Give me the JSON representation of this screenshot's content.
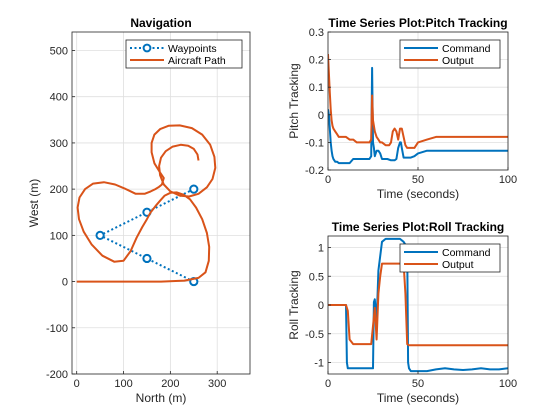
{
  "colors": {
    "series_blue": "#0072BD",
    "series_orange": "#D95319",
    "grid": "#dfdfdf",
    "axis": "#262626"
  },
  "chart_data": [
    {
      "type": "line",
      "title": "Navigation",
      "xlabel": "North (m)",
      "ylabel": "West (m)",
      "xlim": [
        -10,
        370
      ],
      "ylim": [
        -200,
        540
      ],
      "xticks": [
        0,
        100,
        200,
        300
      ],
      "yticks": [
        -200,
        -100,
        0,
        100,
        200,
        300,
        400,
        500
      ],
      "grid": true,
      "equal_aspect": true,
      "legend": "top-right",
      "series": [
        {
          "name": "Waypoints",
          "style": "dotted-with-circle-markers",
          "color": "#0072BD",
          "x": [
            250,
            150,
            50,
            150,
            250
          ],
          "y": [
            200,
            150,
            100,
            50,
            0
          ]
        },
        {
          "name": "Aircraft Path",
          "style": "solid",
          "color": "#D95319",
          "x": [
            0,
            90,
            180,
            230,
            260,
            275,
            282,
            283,
            278,
            268,
            255,
            242,
            228,
            214,
            200,
            188,
            178,
            168,
            158,
            150,
            140,
            128,
            115,
            100,
            80,
            55,
            32,
            15,
            5,
            2,
            6,
            18,
            35,
            58,
            82,
            105,
            126,
            145,
            158,
            168,
            176,
            182,
            186,
            178,
            166,
            160,
            160,
            166,
            178,
            196,
            220,
            246,
            268,
            285,
            294,
            296,
            290,
            278,
            260,
            240,
            220,
            200,
            186,
            178,
            176,
            180,
            190,
            205,
            222,
            238,
            250,
            258,
            260
          ],
          "y": [
            0,
            0,
            0,
            2,
            8,
            20,
            45,
            75,
            105,
            135,
            160,
            178,
            188,
            193,
            192,
            186,
            175,
            163,
            150,
            135,
            118,
            95,
            66,
            45,
            43,
            56,
            80,
            108,
            135,
            160,
            182,
            200,
            212,
            215,
            210,
            200,
            190,
            190,
            195,
            200,
            205,
            210,
            224,
            236,
            256,
            280,
            300,
            318,
            330,
            337,
            338,
            332,
            318,
            296,
            270,
            246,
            222,
            204,
            190,
            184,
            186,
            195,
            210,
            230,
            250,
            268,
            282,
            292,
            296,
            294,
            287,
            275,
            262
          ]
        }
      ]
    },
    {
      "type": "line",
      "title": "Time Series Plot:Pitch Tracking",
      "xlabel": "Time (seconds)",
      "ylabel": "Pitch Tracking",
      "xlim": [
        0,
        100
      ],
      "ylim": [
        -0.2,
        0.3
      ],
      "xticks": [
        0,
        50,
        100
      ],
      "yticks": [
        -0.2,
        -0.1,
        0,
        0.1,
        0.2,
        0.3
      ],
      "grid": true,
      "legend": "top-right",
      "series": [
        {
          "name": "Command",
          "color": "#0072BD",
          "x": [
            0,
            0.5,
            1,
            1.5,
            2,
            2.5,
            3,
            3.5,
            4,
            5,
            6,
            7,
            8,
            10,
            12,
            14,
            16,
            18,
            20,
            22,
            23,
            24,
            24.5,
            25,
            25.5,
            26,
            27,
            28,
            29,
            30,
            31,
            33,
            35,
            37,
            38,
            39,
            40,
            40.5,
            41,
            42,
            44,
            46,
            48,
            50,
            55,
            60,
            65,
            70,
            75,
            80,
            85,
            90,
            95,
            100
          ],
          "y": [
            0.02,
            0.0,
            -0.05,
            -0.1,
            -0.13,
            -0.15,
            -0.16,
            -0.165,
            -0.17,
            -0.17,
            -0.175,
            -0.175,
            -0.175,
            -0.175,
            -0.175,
            -0.16,
            -0.16,
            -0.16,
            -0.16,
            -0.16,
            -0.16,
            -0.15,
            0.17,
            -0.1,
            -0.12,
            -0.15,
            -0.13,
            -0.13,
            -0.14,
            -0.16,
            -0.16,
            -0.16,
            -0.165,
            -0.165,
            -0.16,
            -0.12,
            -0.1,
            -0.1,
            -0.12,
            -0.155,
            -0.155,
            -0.155,
            -0.15,
            -0.14,
            -0.13,
            -0.13,
            -0.13,
            -0.13,
            -0.13,
            -0.13,
            -0.13,
            -0.13,
            -0.13,
            -0.13
          ]
        },
        {
          "name": "Output",
          "color": "#D95319",
          "x": [
            0,
            0.5,
            1,
            1.5,
            2,
            2.5,
            3,
            4,
            5,
            6,
            8,
            10,
            12,
            14,
            16,
            18,
            20,
            22,
            23,
            24,
            24.5,
            25,
            25.5,
            26,
            27,
            28,
            29,
            30,
            32,
            34,
            35,
            36,
            37,
            38,
            39,
            40,
            41,
            42,
            43,
            44,
            46,
            48,
            50,
            55,
            60,
            65,
            70,
            75,
            80,
            85,
            90,
            95,
            100
          ],
          "y": [
            0.22,
            0.15,
            0.08,
            0.02,
            -0.02,
            -0.04,
            -0.05,
            -0.06,
            -0.07,
            -0.08,
            -0.08,
            -0.08,
            -0.09,
            -0.09,
            -0.1,
            -0.1,
            -0.1,
            -0.1,
            -0.1,
            -0.09,
            0.07,
            -0.02,
            -0.04,
            -0.06,
            -0.08,
            -0.09,
            -0.1,
            -0.1,
            -0.11,
            -0.11,
            -0.1,
            -0.06,
            -0.05,
            -0.06,
            -0.09,
            -0.05,
            -0.05,
            -0.08,
            -0.11,
            -0.12,
            -0.12,
            -0.12,
            -0.1,
            -0.09,
            -0.08,
            -0.08,
            -0.08,
            -0.08,
            -0.08,
            -0.08,
            -0.08,
            -0.08,
            -0.08
          ]
        }
      ]
    },
    {
      "type": "line",
      "title": "Time Series Plot:Roll Tracking",
      "xlabel": "Time (seconds)",
      "ylabel": "Roll Tracking",
      "xlim": [
        0,
        100
      ],
      "ylim": [
        -1.2,
        1.2
      ],
      "xticks": [
        0,
        50,
        100
      ],
      "yticks": [
        -1,
        -0.5,
        0,
        0.5,
        1
      ],
      "grid": true,
      "legend": "top-right",
      "series": [
        {
          "name": "Command",
          "color": "#0072BD",
          "x": [
            0,
            10,
            10.5,
            11,
            25,
            25.5,
            26,
            27,
            28,
            30,
            32,
            35,
            38,
            40,
            42,
            44,
            44.5,
            45,
            46,
            50,
            55,
            60,
            65,
            70,
            75,
            80,
            85,
            90,
            95,
            100
          ],
          "y": [
            0,
            0,
            -1.0,
            -1.1,
            -1.1,
            0.05,
            0.1,
            -0.3,
            0.6,
            1.1,
            1.15,
            1.15,
            1.15,
            1.15,
            1.1,
            1.0,
            -1.0,
            -1.1,
            -1.15,
            -1.15,
            -1.15,
            -1.12,
            -1.1,
            -1.12,
            -1.13,
            -1.12,
            -1.1,
            -1.12,
            -1.12,
            -1.1
          ]
        },
        {
          "name": "Output",
          "color": "#D95319",
          "x": [
            0,
            10,
            11,
            12,
            14,
            20,
            24,
            26,
            27,
            28,
            29,
            30,
            31,
            34,
            38,
            40,
            42,
            43,
            44,
            45,
            46,
            50,
            60,
            70,
            80,
            90,
            100
          ],
          "y": [
            0,
            0,
            -0.1,
            -0.6,
            -0.68,
            -0.68,
            -0.68,
            -0.05,
            -0.6,
            0.2,
            0.5,
            0.72,
            0.72,
            0.72,
            0.72,
            0.72,
            0.72,
            0.2,
            -0.68,
            -0.7,
            -0.7,
            -0.7,
            -0.7,
            -0.7,
            -0.7,
            -0.7,
            -0.7
          ]
        }
      ]
    }
  ]
}
